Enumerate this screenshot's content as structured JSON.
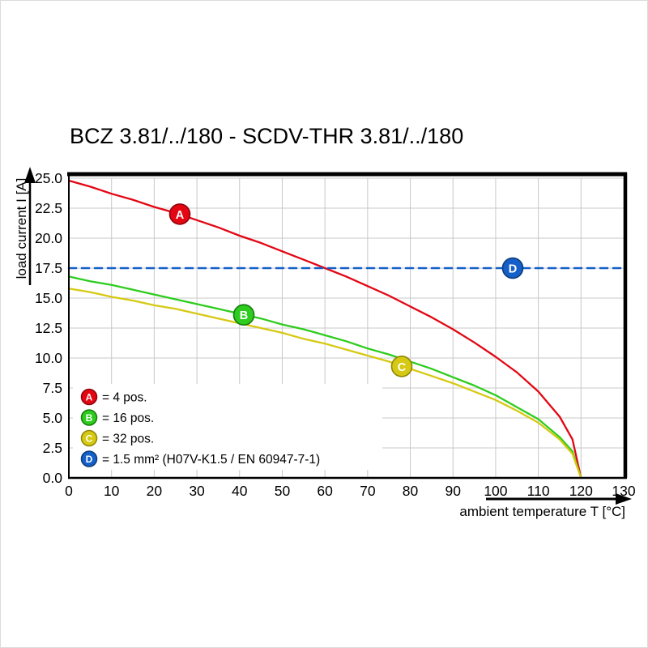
{
  "page": {
    "title": "BCZ 3.81/../180 - SCDV-THR 3.81/../180"
  },
  "chart_data": {
    "type": "line",
    "title": "BCZ 3.81/../180 - SCDV-THR 3.81/../180",
    "xlabel": "ambient temperature T [°C]",
    "ylabel": "load current I [A]",
    "xlim": [
      0,
      130
    ],
    "ylim": [
      0,
      25
    ],
    "grid": true,
    "legend_position": "lower-left",
    "x_ticks": [
      0,
      10,
      20,
      30,
      40,
      50,
      60,
      70,
      80,
      90,
      100,
      110,
      120,
      130
    ],
    "y_ticks": [
      0.0,
      2.5,
      5.0,
      7.5,
      10.0,
      12.5,
      15.0,
      17.5,
      20.0,
      22.5,
      25.0
    ],
    "y_tick_labels": [
      "0.0",
      "2.5",
      "5.0",
      "7.5",
      "10.0",
      "12.5",
      "15.0",
      "17.5",
      "20.0",
      "22.5",
      "25.0"
    ],
    "series": [
      {
        "id": "A",
        "label": "= 4 pos.",
        "color": "#e30613",
        "color_dark": "#8f040c",
        "style": "solid",
        "x": [
          0,
          5,
          10,
          15,
          20,
          25,
          30,
          35,
          40,
          45,
          50,
          55,
          60,
          65,
          70,
          75,
          80,
          85,
          90,
          95,
          100,
          105,
          110,
          115,
          118,
          120
        ],
        "y": [
          24.8,
          24.3,
          23.7,
          23.2,
          22.6,
          22.1,
          21.5,
          20.9,
          20.2,
          19.6,
          18.9,
          18.2,
          17.5,
          16.8,
          16.0,
          15.2,
          14.3,
          13.4,
          12.4,
          11.3,
          10.1,
          8.8,
          7.2,
          5.1,
          3.2,
          0
        ],
        "marker_at": {
          "x": 26,
          "y": 22.0
        }
      },
      {
        "id": "B",
        "label": "= 16 pos.",
        "color": "#2ecc1e",
        "color_dark": "#157a0c",
        "style": "solid",
        "x": [
          0,
          5,
          10,
          15,
          20,
          25,
          30,
          35,
          40,
          45,
          50,
          55,
          60,
          65,
          70,
          75,
          80,
          85,
          90,
          95,
          100,
          105,
          110,
          115,
          118,
          120
        ],
        "y": [
          16.8,
          16.4,
          16.1,
          15.7,
          15.3,
          14.9,
          14.5,
          14.1,
          13.7,
          13.3,
          12.8,
          12.4,
          11.9,
          11.4,
          10.8,
          10.3,
          9.7,
          9.1,
          8.4,
          7.7,
          6.9,
          5.9,
          4.9,
          3.4,
          2.2,
          0
        ],
        "marker_at": {
          "x": 41,
          "y": 13.6
        }
      },
      {
        "id": "C",
        "label": "= 32 pos.",
        "color": "#d6c913",
        "color_dark": "#8f8505",
        "style": "solid",
        "x": [
          0,
          5,
          10,
          15,
          20,
          25,
          30,
          35,
          40,
          45,
          50,
          55,
          60,
          65,
          70,
          75,
          80,
          85,
          90,
          95,
          100,
          105,
          110,
          115,
          118,
          120
        ],
        "y": [
          15.8,
          15.5,
          15.1,
          14.8,
          14.4,
          14.1,
          13.7,
          13.3,
          12.9,
          12.5,
          12.1,
          11.6,
          11.2,
          10.7,
          10.2,
          9.7,
          9.1,
          8.5,
          7.9,
          7.2,
          6.5,
          5.6,
          4.6,
          3.2,
          2.0,
          0
        ],
        "marker_at": {
          "x": 78,
          "y": 9.3
        }
      },
      {
        "id": "D",
        "label": "= 1.5 mm² (H07V-K1.5 / EN 60947-7-1)",
        "color": "#1560c8",
        "color_dark": "#0b3a7a",
        "style": "dashed",
        "x": [
          0,
          130
        ],
        "y": [
          17.5,
          17.5
        ],
        "marker_at": {
          "x": 104,
          "y": 17.5
        }
      }
    ],
    "grid_color": "#c8c8c8",
    "axis_color": "#000000"
  }
}
